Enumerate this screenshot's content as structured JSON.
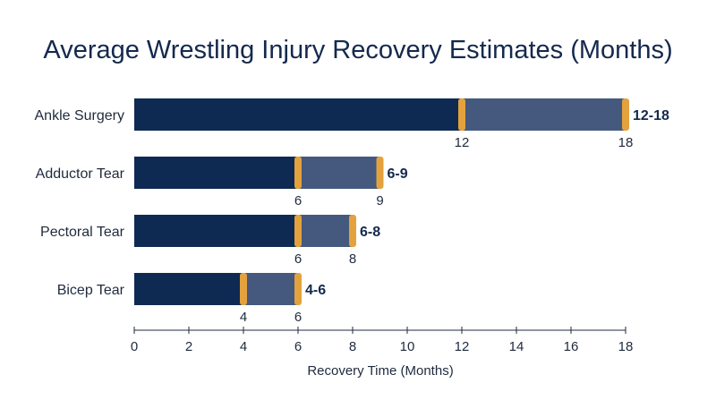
{
  "chart_data": {
    "type": "bar",
    "title": "Average Wrestling Injury Recovery Estimates (Months)",
    "xlabel": "Recovery Time (Months)",
    "ylabel": "",
    "xlim": [
      0,
      19
    ],
    "xticks": [
      0,
      2,
      4,
      6,
      8,
      10,
      12,
      14,
      16,
      18
    ],
    "grid": false,
    "categories": [
      "Ankle Surgery",
      "Adductor Tear",
      "Pectoral Tear",
      "Bicep Tear"
    ],
    "ranges": [
      {
        "category": "Ankle Surgery",
        "min": 12,
        "max": 18,
        "label": "12-18"
      },
      {
        "category": "Adductor Tear",
        "min": 6,
        "max": 9,
        "label": "6-9"
      },
      {
        "category": "Pectoral Tear",
        "min": 6,
        "max": 8,
        "label": "6-8"
      },
      {
        "category": "Bicep Tear",
        "min": 4,
        "max": 6,
        "label": "4-6"
      }
    ],
    "colors": {
      "base": "#0f2a52",
      "range": "#44597d",
      "marker": "#e3a23d",
      "text": "#1f2a3d",
      "title": "#14294d"
    }
  }
}
